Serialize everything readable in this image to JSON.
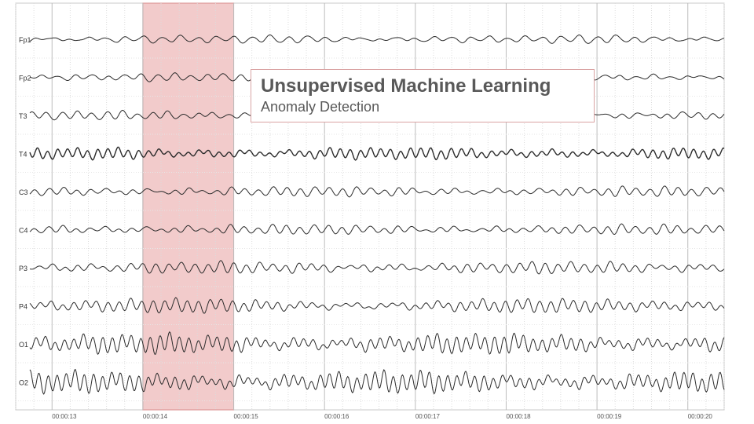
{
  "chart_data": {
    "type": "line",
    "description_units": "EEG amplitude traces over time (seconds)",
    "channels": [
      "Fp1",
      "Fp2",
      "T3",
      "T4",
      "C3",
      "C4",
      "P3",
      "P4",
      "O1",
      "O2"
    ],
    "x_ticks": [
      "00:00:13",
      "00:00:14",
      "00:00:15",
      "00:00:16",
      "00:00:17",
      "00:00:18",
      "00:00:19",
      "00:00:20"
    ],
    "x_range": [
      12.6,
      20.4
    ],
    "highlight": {
      "start": 14.0,
      "end": 15.0,
      "color": "#e8a0a0"
    },
    "grid": true
  },
  "overlay": {
    "title": "Unsupervised Machine Learning",
    "subtitle": "Anomaly Detection"
  }
}
